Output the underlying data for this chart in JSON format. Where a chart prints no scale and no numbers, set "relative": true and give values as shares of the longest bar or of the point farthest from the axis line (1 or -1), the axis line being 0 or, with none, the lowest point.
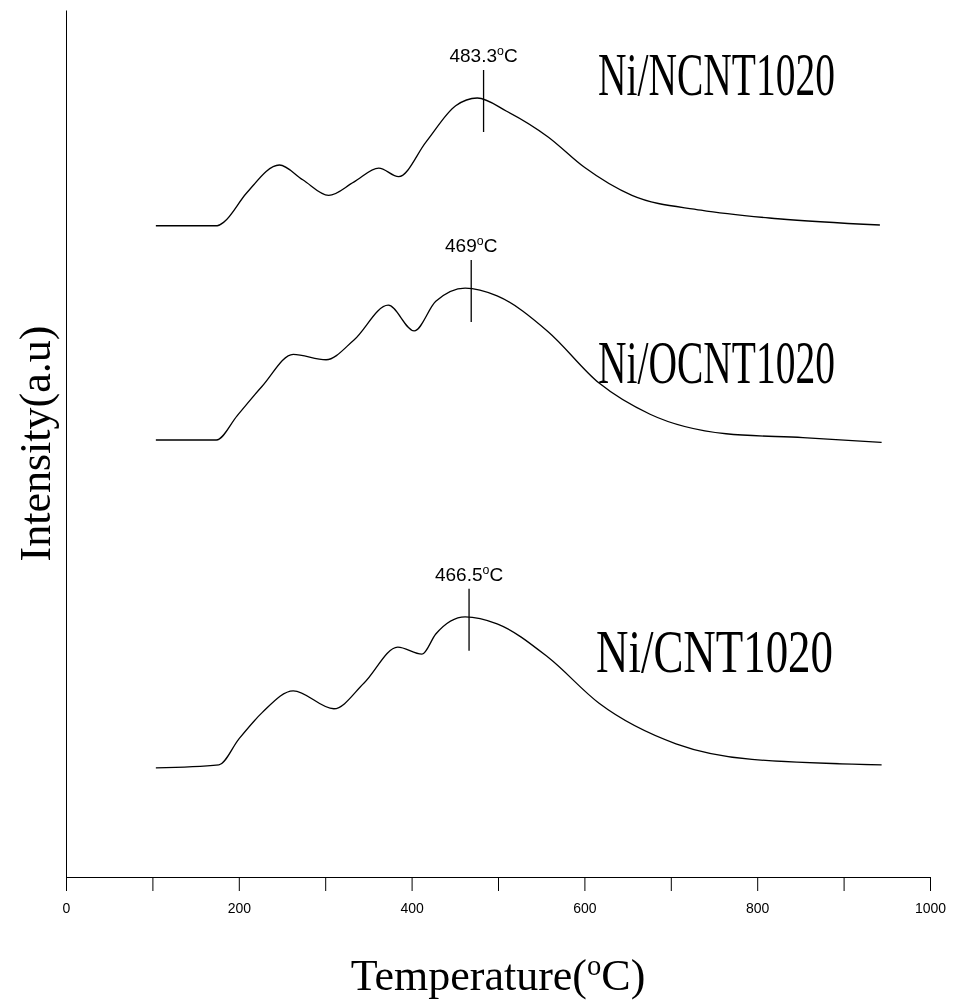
{
  "chart_data": {
    "type": "line",
    "relative": true,
    "xlabel": "Temperature($^{o}$C)",
    "ylabel": "Intensity(a.u)",
    "xlim": [
      0,
      1000
    ],
    "xticks": [
      0,
      {
        "value": 100,
        "label": null
      },
      200,
      {
        "value": 300,
        "label": null
      },
      400,
      {
        "value": 500,
        "label": null
      },
      600,
      {
        "value": 700,
        "label": null
      },
      800,
      {
        "value": 900,
        "label": null
      },
      1000
    ],
    "grid": false,
    "legend": "right",
    "marker": "none",
    "line_style": "solid",
    "series": [
      {
        "name": "Ni/NCNT1020",
        "color": "#000000",
        "x": [
          104,
          175,
          183,
          209,
          247,
          274,
          304,
          333,
          362,
          385,
          417,
          451,
          476,
          510,
          558,
          600,
          655,
          735,
          824,
          942
        ],
        "values": [
          0.836,
          0.836,
          0.841,
          0.878,
          0.914,
          0.895,
          0.875,
          0.892,
          0.91,
          0.899,
          0.944,
          0.99,
          1.0,
          0.983,
          0.95,
          0.911,
          0.875,
          0.856,
          0.845,
          0.837
        ]
      },
      {
        "name": "Ni/OCNT1020",
        "color": "#000000",
        "x": [
          104,
          174,
          198,
          227,
          263,
          301,
          333,
          373,
          403,
          428,
          462,
          499,
          558,
          617,
          676,
          764,
          853,
          944
        ],
        "values": [
          0.561,
          0.561,
          0.592,
          0.63,
          0.671,
          0.664,
          0.689,
          0.734,
          0.701,
          0.739,
          0.756,
          0.746,
          0.7,
          0.634,
          0.594,
          0.569,
          0.564,
          0.558
        ]
      },
      {
        "name": "Ni/CNT1020",
        "color": "#000000",
        "x": [
          104,
          177,
          200,
          227,
          263,
          310,
          345,
          384,
          412,
          428,
          462,
          499,
          558,
          617,
          706,
          794,
          944
        ],
        "values": [
          0.14,
          0.144,
          0.177,
          0.211,
          0.239,
          0.216,
          0.249,
          0.295,
          0.286,
          0.312,
          0.334,
          0.325,
          0.282,
          0.223,
          0.171,
          0.151,
          0.144
        ]
      }
    ],
    "annotations": [
      {
        "text": "483.3$^{o}$C",
        "x": 483.3,
        "y": 1.0
      },
      {
        "text": "469$^{o}$C",
        "x": 469,
        "y": 0.756
      },
      {
        "text": "466.5$^{o}$C",
        "x": 466.5,
        "y": 0.334
      }
    ]
  }
}
